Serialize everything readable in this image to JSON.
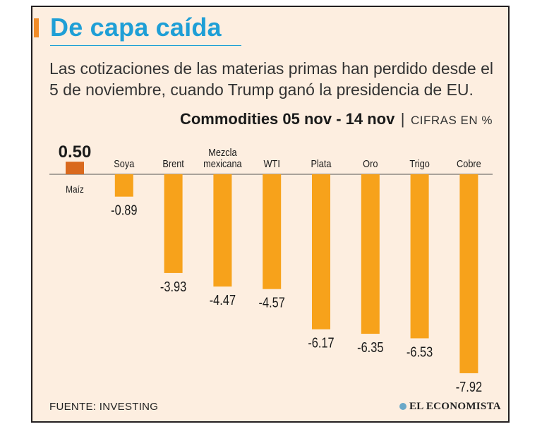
{
  "title": "De capa caída",
  "subtitle": "Las cotizaciones de las materias primas han perdido desde el 5 de noviembre, cuando Trump ganó la presidencia de EU.",
  "chart_heading": "Commodities 05 nov - 14 nov",
  "heading_separator": "|",
  "units_label": "CIFRAS EN %",
  "source": "FUENTE: INVESTING",
  "logo_text": "EL ECONOMISTA",
  "colors": {
    "title": "#1f9fd6",
    "bar": "#f7a21b",
    "positive_bar": "#d9691e",
    "accent": "#f28c28",
    "background": "#fdeee0"
  },
  "chart_data": {
    "type": "bar",
    "title": "Commodities 05 nov - 14 nov",
    "ylabel": "",
    "xlabel": "",
    "units": "%",
    "categories": [
      "Maíz",
      "Soya",
      "Brent",
      "Mezcla mexicana",
      "WTI",
      "Plata",
      "Oro",
      "Trigo",
      "Cobre"
    ],
    "values": [
      0.5,
      -0.89,
      -3.93,
      -4.47,
      -4.57,
      -6.17,
      -6.35,
      -6.53,
      -7.92
    ],
    "value_labels": [
      "0.50",
      "-0.89",
      "-3.93",
      "-4.47",
      "-4.57",
      "-6.17",
      "-6.35",
      "-6.53",
      "-7.92"
    ],
    "ylim": [
      -8,
      0.5
    ],
    "grid": false,
    "legend": "none"
  }
}
